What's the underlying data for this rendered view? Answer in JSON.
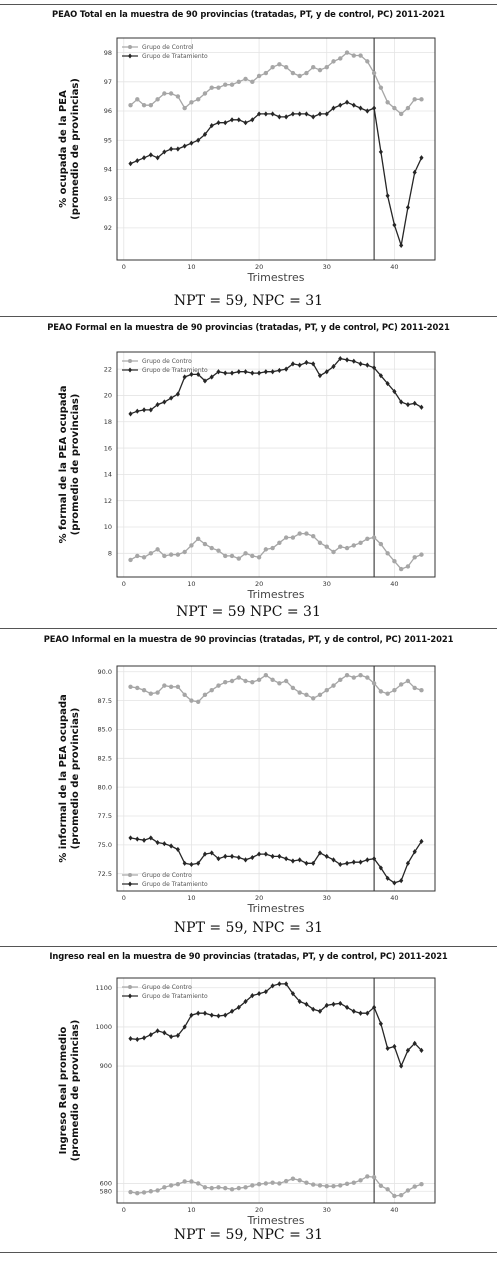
{
  "charts": [
    {
      "title": "PEAO Total en la muestra de 90 provincias (tratadas, PT, y de control, PC) 2011-2021",
      "caption": "NPT = 59, NPC = 31",
      "chart_data": {
        "type": "line",
        "xlabel": "Trimestres",
        "ylabel": "% ocupada de la PEA (promedio de provincias)",
        "ylabel_lines": [
          "% ocupada de la PEA",
          "(promedio de provincias)"
        ],
        "xlim": [
          -1,
          46
        ],
        "ylim": [
          90.9,
          98.5
        ],
        "xticks": [
          0,
          10,
          20,
          30,
          40
        ],
        "yticks": [
          92,
          93,
          94,
          95,
          96,
          97,
          98
        ],
        "vline": 37,
        "grid": true,
        "legend": "top-left",
        "series": [
          {
            "name": "Grupo de Control",
            "color": "#a6a6a6",
            "marker": "circle",
            "x": [
              1,
              2,
              3,
              4,
              5,
              6,
              7,
              8,
              9,
              10,
              11,
              12,
              13,
              14,
              15,
              16,
              17,
              18,
              19,
              20,
              21,
              22,
              23,
              24,
              25,
              26,
              27,
              28,
              29,
              30,
              31,
              32,
              33,
              34,
              35,
              36,
              37,
              38,
              39,
              40,
              41,
              42,
              43,
              44
            ],
            "values": [
              96.2,
              96.4,
              96.2,
              96.2,
              96.4,
              96.6,
              96.6,
              96.5,
              96.1,
              96.3,
              96.4,
              96.6,
              96.8,
              96.8,
              96.9,
              96.9,
              97.0,
              97.1,
              97.0,
              97.2,
              97.3,
              97.5,
              97.6,
              97.5,
              97.3,
              97.2,
              97.3,
              97.5,
              97.4,
              97.5,
              97.7,
              97.8,
              98.0,
              97.9,
              97.9,
              97.7,
              97.3,
              96.8,
              96.3,
              96.1,
              95.9,
              96.1,
              96.4,
              96.4
            ]
          },
          {
            "name": "Grupo de Tratamiento",
            "color": "#262626",
            "marker": "diamond",
            "x": [
              1,
              2,
              3,
              4,
              5,
              6,
              7,
              8,
              9,
              10,
              11,
              12,
              13,
              14,
              15,
              16,
              17,
              18,
              19,
              20,
              21,
              22,
              23,
              24,
              25,
              26,
              27,
              28,
              29,
              30,
              31,
              32,
              33,
              34,
              35,
              36,
              37,
              38,
              39,
              40,
              41,
              42,
              43,
              44
            ],
            "values": [
              94.2,
              94.3,
              94.4,
              94.5,
              94.4,
              94.6,
              94.7,
              94.7,
              94.8,
              94.9,
              95.0,
              95.2,
              95.5,
              95.6,
              95.6,
              95.7,
              95.7,
              95.6,
              95.7,
              95.9,
              95.9,
              95.9,
              95.8,
              95.8,
              95.9,
              95.9,
              95.9,
              95.8,
              95.9,
              95.9,
              96.1,
              96.2,
              96.3,
              96.2,
              96.1,
              96.0,
              96.1,
              94.6,
              93.1,
              92.1,
              91.4,
              92.7,
              93.9,
              94.4
            ]
          }
        ]
      }
    },
    {
      "title": "PEAO Formal en la muestra de 90 provincias (tratadas, PT, y de control, PC) 2011-2021",
      "caption": "NPT = 59 NPC = 31",
      "chart_data": {
        "type": "line",
        "xlabel": "Trimestres",
        "ylabel": "% formal de la PEA ocupada (promedio de provincias)",
        "ylabel_lines": [
          "% formal de la PEA ocupada",
          "(promedio de provincias)"
        ],
        "xlim": [
          -1,
          46
        ],
        "ylim": [
          6.2,
          23.3
        ],
        "xticks": [
          0,
          10,
          20,
          30,
          40
        ],
        "yticks": [
          8,
          10,
          12,
          14,
          16,
          18,
          20,
          22
        ],
        "vline": 37,
        "grid": true,
        "legend": "top-left",
        "series": [
          {
            "name": "Grupo de Contro",
            "color": "#a6a6a6",
            "marker": "circle",
            "x": [
              1,
              2,
              3,
              4,
              5,
              6,
              7,
              8,
              9,
              10,
              11,
              12,
              13,
              14,
              15,
              16,
              17,
              18,
              19,
              20,
              21,
              22,
              23,
              24,
              25,
              26,
              27,
              28,
              29,
              30,
              31,
              32,
              33,
              34,
              35,
              36,
              37,
              38,
              39,
              40,
              41,
              42,
              43,
              44
            ],
            "values": [
              7.5,
              7.8,
              7.7,
              8.0,
              8.3,
              7.8,
              7.9,
              7.9,
              8.1,
              8.6,
              9.1,
              8.7,
              8.4,
              8.2,
              7.8,
              7.8,
              7.6,
              8.0,
              7.8,
              7.7,
              8.3,
              8.4,
              8.8,
              9.2,
              9.2,
              9.5,
              9.5,
              9.3,
              8.8,
              8.5,
              8.1,
              8.5,
              8.4,
              8.6,
              8.8,
              9.1,
              9.2,
              8.7,
              8.0,
              7.4,
              6.8,
              7.0,
              7.7,
              7.9
            ]
          },
          {
            "name": "Grupo de Tratamiento",
            "color": "#262626",
            "marker": "diamond",
            "x": [
              1,
              2,
              3,
              4,
              5,
              6,
              7,
              8,
              9,
              10,
              11,
              12,
              13,
              14,
              15,
              16,
              17,
              18,
              19,
              20,
              21,
              22,
              23,
              24,
              25,
              26,
              27,
              28,
              29,
              30,
              31,
              32,
              33,
              34,
              35,
              36,
              37,
              38,
              39,
              40,
              41,
              42,
              43,
              44
            ],
            "values": [
              18.6,
              18.8,
              18.9,
              18.9,
              19.3,
              19.5,
              19.8,
              20.1,
              21.4,
              21.6,
              21.6,
              21.1,
              21.4,
              21.8,
              21.7,
              21.7,
              21.8,
              21.8,
              21.7,
              21.7,
              21.8,
              21.8,
              21.9,
              22.0,
              22.4,
              22.3,
              22.5,
              22.4,
              21.5,
              21.8,
              22.2,
              22.8,
              22.7,
              22.6,
              22.4,
              22.3,
              22.1,
              21.5,
              20.9,
              20.3,
              19.5,
              19.3,
              19.4,
              19.1
            ]
          }
        ]
      }
    },
    {
      "title": "PEAO Informal en la muestra de 90 provincias (tratadas, PT, y de control, PC) 2011-2021",
      "caption": "NPT = 59, NPC = 31",
      "chart_data": {
        "type": "line",
        "xlabel": "Trimestres",
        "ylabel": "% informal de la PEA ocupada (promedio de provincias)",
        "ylabel_lines": [
          "% informal de la PEA ocupada",
          "(promedio de provincias)"
        ],
        "xlim": [
          -1,
          46
        ],
        "ylim": [
          71.0,
          90.5
        ],
        "xticks": [
          0,
          10,
          20,
          30,
          40
        ],
        "yticks": [
          72.5,
          75.0,
          77.5,
          80.0,
          82.5,
          85.0,
          87.5,
          90.0
        ],
        "ytick_labels": [
          "72.5",
          "75.0",
          "77.5",
          "80.0",
          "82.5",
          "85.0",
          "87.5",
          "90.0"
        ],
        "vline": 37,
        "grid": true,
        "legend": "bottom-left",
        "series": [
          {
            "name": "Grupo de Contro",
            "color": "#a6a6a6",
            "marker": "circle",
            "x": [
              1,
              2,
              3,
              4,
              5,
              6,
              7,
              8,
              9,
              10,
              11,
              12,
              13,
              14,
              15,
              16,
              17,
              18,
              19,
              20,
              21,
              22,
              23,
              24,
              25,
              26,
              27,
              28,
              29,
              30,
              31,
              32,
              33,
              34,
              35,
              36,
              37,
              38,
              39,
              40,
              41,
              42,
              43,
              44
            ],
            "values": [
              88.7,
              88.6,
              88.4,
              88.1,
              88.2,
              88.8,
              88.7,
              88.7,
              88.0,
              87.5,
              87.4,
              88.0,
              88.4,
              88.8,
              89.1,
              89.2,
              89.5,
              89.2,
              89.1,
              89.3,
              89.7,
              89.3,
              89.0,
              89.2,
              88.6,
              88.2,
              88.0,
              87.7,
              88.0,
              88.4,
              88.8,
              89.3,
              89.7,
              89.5,
              89.7,
              89.5,
              89.0,
              88.3,
              88.1,
              88.4,
              88.9,
              89.2,
              88.6,
              88.4
            ]
          },
          {
            "name": "Grupo de Tratamiento",
            "color": "#262626",
            "marker": "diamond",
            "x": [
              1,
              2,
              3,
              4,
              5,
              6,
              7,
              8,
              9,
              10,
              11,
              12,
              13,
              14,
              15,
              16,
              17,
              18,
              19,
              20,
              21,
              22,
              23,
              24,
              25,
              26,
              27,
              28,
              29,
              30,
              31,
              32,
              33,
              34,
              35,
              36,
              37,
              38,
              39,
              40,
              41,
              42,
              43,
              44
            ],
            "values": [
              75.6,
              75.5,
              75.4,
              75.6,
              75.2,
              75.1,
              74.9,
              74.6,
              73.4,
              73.3,
              73.4,
              74.2,
              74.3,
              73.8,
              74.0,
              74.0,
              73.9,
              73.7,
              73.9,
              74.2,
              74.2,
              74.0,
              74.0,
              73.8,
              73.6,
              73.7,
              73.4,
              73.4,
              74.3,
              74.0,
              73.7,
              73.3,
              73.4,
              73.5,
              73.5,
              73.7,
              73.8,
              73.0,
              72.1,
              71.7,
              71.9,
              73.4,
              74.4,
              75.3
            ]
          }
        ]
      }
    },
    {
      "title": "Ingreso real en la muestra de 90 provincias (tratadas, PT, y de control, PC) 2011-2021",
      "caption": "NPT = 59, NPC = 31",
      "chart_data": {
        "type": "line",
        "xlabel": "Trimestres",
        "ylabel": "Ingreso Real promedio (promedio de provincias)",
        "ylabel_lines": [
          "Ingreso Real promedio",
          "(promedio de provincias)"
        ],
        "xlim": [
          -1,
          46
        ],
        "ylim": [
          550,
          1125
        ],
        "xticks": [
          0,
          10,
          20,
          30,
          40
        ],
        "yticks": [
          580,
          600,
          900,
          1000,
          1100
        ],
        "ytick_labels": [
          "580",
          "600",
          "900",
          "1000",
          "1100"
        ],
        "vline": 37,
        "grid": true,
        "legend": "top-left",
        "series": [
          {
            "name": "Grupo de Contro",
            "color": "#a6a6a6",
            "marker": "circle",
            "x": [
              1,
              2,
              3,
              4,
              5,
              6,
              7,
              8,
              9,
              10,
              11,
              12,
              13,
              14,
              15,
              16,
              17,
              18,
              19,
              20,
              21,
              22,
              23,
              24,
              25,
              26,
              27,
              28,
              29,
              30,
              31,
              32,
              33,
              34,
              35,
              36,
              37,
              38,
              39,
              40,
              41,
              42,
              43,
              44
            ],
            "values": [
              578,
              575,
              577,
              580,
              582,
              590,
              595,
              598,
              605,
              605,
              600,
              590,
              588,
              590,
              588,
              585,
              588,
              590,
              595,
              598,
              600,
              602,
              600,
              606,
              612,
              608,
              602,
              597,
              595,
              593,
              593,
              595,
              599,
              602,
              608,
              618,
              616,
              594,
              585,
              568,
              570,
              582,
              592,
              598
            ]
          },
          {
            "name": "Grupo de Tratamiento",
            "color": "#262626",
            "marker": "diamond",
            "x": [
              1,
              2,
              3,
              4,
              5,
              6,
              7,
              8,
              9,
              10,
              11,
              12,
              13,
              14,
              15,
              16,
              17,
              18,
              19,
              20,
              21,
              22,
              23,
              24,
              25,
              26,
              27,
              28,
              29,
              30,
              31,
              32,
              33,
              34,
              35,
              36,
              37,
              38,
              39,
              40,
              41,
              42,
              43,
              44
            ],
            "values": [
              970,
              968,
              972,
              980,
              990,
              985,
              975,
              978,
              1000,
              1030,
              1035,
              1035,
              1030,
              1028,
              1030,
              1040,
              1050,
              1065,
              1080,
              1085,
              1090,
              1105,
              1110,
              1110,
              1085,
              1065,
              1058,
              1045,
              1040,
              1055,
              1058,
              1060,
              1050,
              1040,
              1035,
              1035,
              1050,
              1008,
              945,
              950,
              900,
              940,
              958,
              940
            ]
          }
        ]
      }
    }
  ]
}
